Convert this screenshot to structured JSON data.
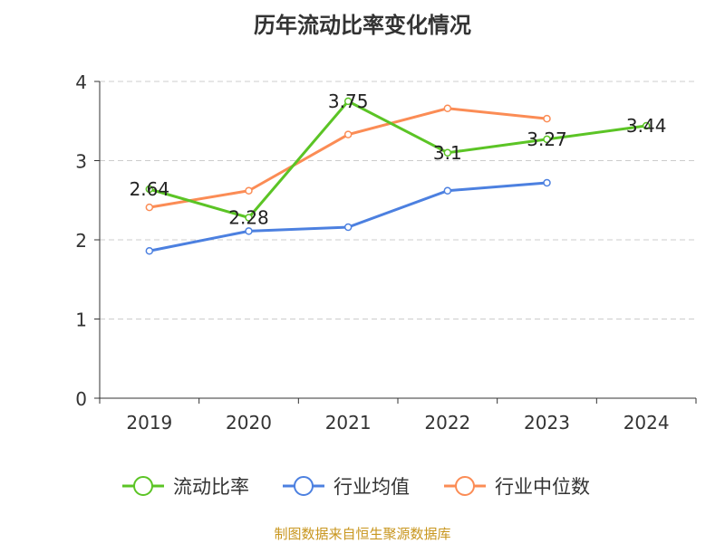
{
  "chart_data": {
    "type": "line",
    "title": "历年流动比率变化情况",
    "categories": [
      "2019",
      "2020",
      "2021",
      "2022",
      "2023",
      "2024"
    ],
    "ylim": [
      0,
      4
    ],
    "yticks": [
      0,
      1,
      2,
      3,
      4
    ],
    "grid": true,
    "legend_position": "bottom",
    "series": [
      {
        "name": "流动比率",
        "color": "#5bc425",
        "values": [
          2.64,
          2.28,
          3.75,
          3.1,
          3.27,
          3.44
        ],
        "labels": [
          "2.64",
          "2.28",
          "3.75",
          "3.1",
          "3.27",
          "3.44"
        ]
      },
      {
        "name": "行业均值",
        "color": "#4c80e0",
        "values": [
          1.86,
          2.11,
          2.16,
          2.62,
          2.72,
          null
        ]
      },
      {
        "name": "行业中位数",
        "color": "#fb8c55",
        "values": [
          2.41,
          2.62,
          3.33,
          3.66,
          3.53,
          null
        ]
      }
    ]
  },
  "source": "制图数据来自恒生聚源数据库"
}
